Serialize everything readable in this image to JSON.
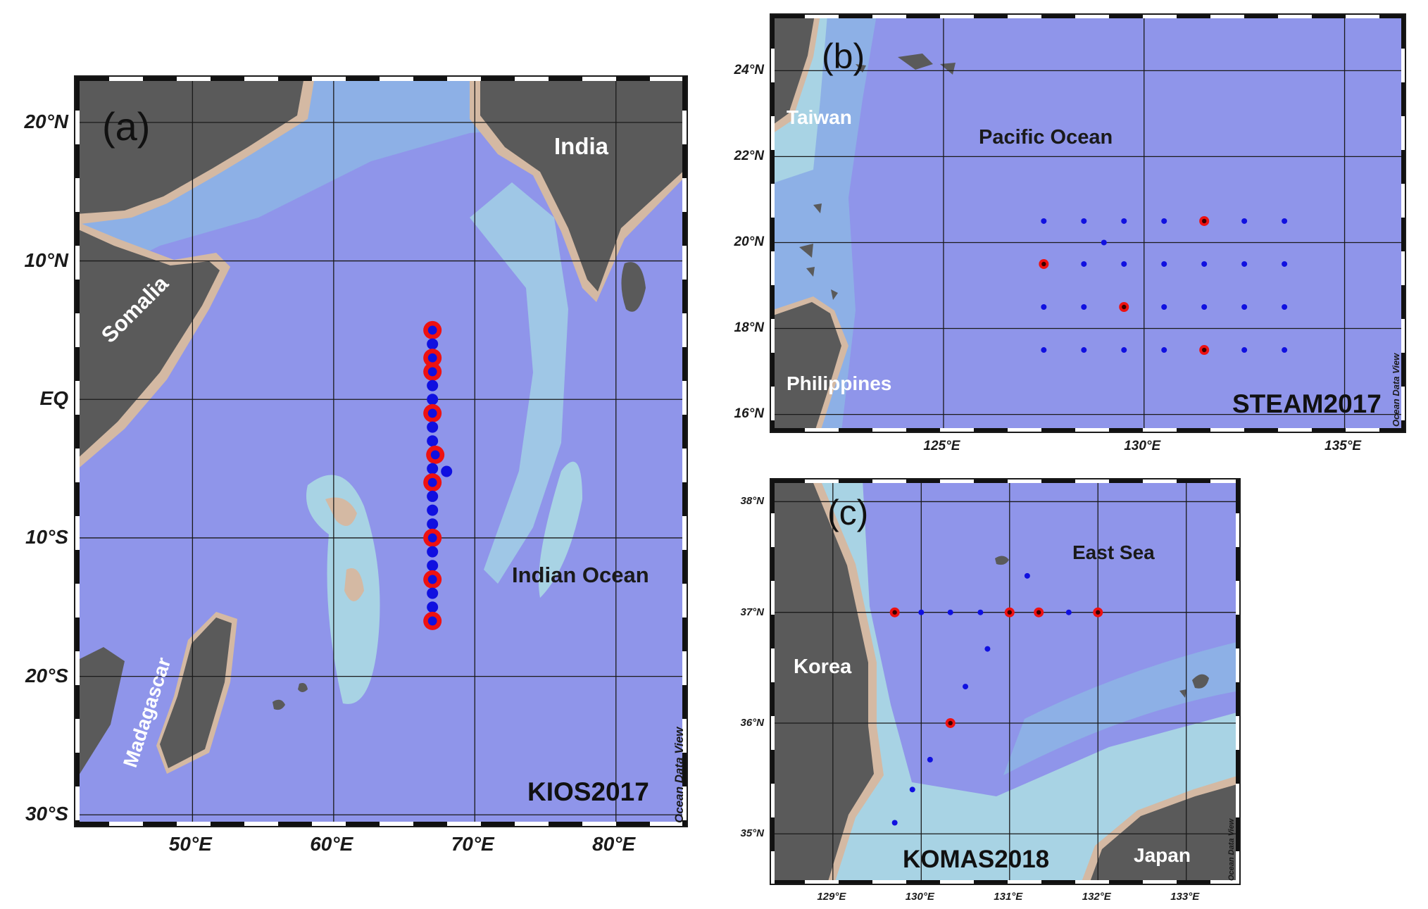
{
  "figure": {
    "credit": "Ocean Data View",
    "colors": {
      "ocean_deep": "#8f95ea",
      "ocean_mid": "#8db0e6",
      "shelf": "#a8d3e4",
      "coast": "#d4b9a3",
      "land": "#5a5a5a",
      "station_small": "#1010e0",
      "station_sampled": "#ee1111"
    }
  },
  "panel_a": {
    "letter": "(a)",
    "cruise": "KIOS2017",
    "ocean_label": "Indian Ocean",
    "places": [
      "India",
      "Somalia",
      "Madagascar"
    ],
    "lat_ticks": [
      "20°N",
      "10°N",
      "EQ",
      "10°S",
      "20°S",
      "30°S"
    ],
    "lon_ticks": [
      "50°E",
      "60°E",
      "70°E",
      "80°E"
    ]
  },
  "panel_b": {
    "letter": "(b)",
    "cruise": "STEAM2017",
    "ocean_label": "Pacific Ocean",
    "places": [
      "Taiwan",
      "Philippines"
    ],
    "lat_ticks": [
      "24°N",
      "22°N",
      "20°N",
      "18°N",
      "16°N"
    ],
    "lon_ticks": [
      "125°E",
      "130°E",
      "135°E"
    ]
  },
  "panel_c": {
    "letter": "(c)",
    "cruise": "KOMAS2018",
    "ocean_label": "East Sea",
    "places": [
      "Korea",
      "Japan"
    ],
    "lat_ticks": [
      "38°N",
      "37°N",
      "36°N",
      "35°N"
    ],
    "lon_ticks": [
      "129°E",
      "130°E",
      "131°E",
      "132°E",
      "133°E"
    ]
  },
  "stations": {
    "kios2017": [
      {
        "lat": 5.0,
        "lon": 67.0,
        "sampled": true
      },
      {
        "lat": 4.0,
        "lon": 67.0,
        "sampled": false
      },
      {
        "lat": 3.0,
        "lon": 67.0,
        "sampled": true
      },
      {
        "lat": 2.0,
        "lon": 67.0,
        "sampled": true
      },
      {
        "lat": 1.0,
        "lon": 67.0,
        "sampled": false
      },
      {
        "lat": 0.0,
        "lon": 67.0,
        "sampled": false
      },
      {
        "lat": -1.0,
        "lon": 67.0,
        "sampled": true
      },
      {
        "lat": -2.0,
        "lon": 67.0,
        "sampled": false
      },
      {
        "lat": -3.0,
        "lon": 67.0,
        "sampled": false
      },
      {
        "lat": -4.0,
        "lon": 67.2,
        "sampled": true
      },
      {
        "lat": -5.0,
        "lon": 67.0,
        "sampled": false
      },
      {
        "lat": -5.2,
        "lon": 68.0,
        "sampled": false
      },
      {
        "lat": -6.0,
        "lon": 67.0,
        "sampled": true
      },
      {
        "lat": -7.0,
        "lon": 67.0,
        "sampled": false
      },
      {
        "lat": -8.0,
        "lon": 67.0,
        "sampled": false
      },
      {
        "lat": -9.0,
        "lon": 67.0,
        "sampled": false
      },
      {
        "lat": -10.0,
        "lon": 67.0,
        "sampled": true
      },
      {
        "lat": -11.0,
        "lon": 67.0,
        "sampled": false
      },
      {
        "lat": -12.0,
        "lon": 67.0,
        "sampled": false
      },
      {
        "lat": -13.0,
        "lon": 67.0,
        "sampled": true
      },
      {
        "lat": -14.0,
        "lon": 67.0,
        "sampled": false
      },
      {
        "lat": -15.0,
        "lon": 67.0,
        "sampled": false
      },
      {
        "lat": -16.0,
        "lon": 67.0,
        "sampled": true
      }
    ],
    "steam2017": [
      {
        "lat": 20.5,
        "lon": 127.5,
        "sampled": false
      },
      {
        "lat": 20.5,
        "lon": 128.5,
        "sampled": false
      },
      {
        "lat": 20.5,
        "lon": 129.5,
        "sampled": false
      },
      {
        "lat": 20.5,
        "lon": 130.5,
        "sampled": false
      },
      {
        "lat": 20.5,
        "lon": 131.5,
        "sampled": true
      },
      {
        "lat": 20.5,
        "lon": 132.5,
        "sampled": false
      },
      {
        "lat": 20.5,
        "lon": 133.5,
        "sampled": false
      },
      {
        "lat": 20.0,
        "lon": 129.0,
        "sampled": false
      },
      {
        "lat": 19.5,
        "lon": 127.5,
        "sampled": true
      },
      {
        "lat": 19.5,
        "lon": 128.5,
        "sampled": false
      },
      {
        "lat": 19.5,
        "lon": 129.5,
        "sampled": false
      },
      {
        "lat": 19.5,
        "lon": 130.5,
        "sampled": false
      },
      {
        "lat": 19.5,
        "lon": 131.5,
        "sampled": false
      },
      {
        "lat": 19.5,
        "lon": 132.5,
        "sampled": false
      },
      {
        "lat": 19.5,
        "lon": 133.5,
        "sampled": false
      },
      {
        "lat": 18.5,
        "lon": 127.5,
        "sampled": false
      },
      {
        "lat": 18.5,
        "lon": 128.5,
        "sampled": false
      },
      {
        "lat": 18.5,
        "lon": 129.5,
        "sampled": true
      },
      {
        "lat": 18.5,
        "lon": 130.5,
        "sampled": false
      },
      {
        "lat": 18.5,
        "lon": 131.5,
        "sampled": false
      },
      {
        "lat": 18.5,
        "lon": 132.5,
        "sampled": false
      },
      {
        "lat": 18.5,
        "lon": 133.5,
        "sampled": false
      },
      {
        "lat": 17.5,
        "lon": 127.5,
        "sampled": false
      },
      {
        "lat": 17.5,
        "lon": 128.5,
        "sampled": false
      },
      {
        "lat": 17.5,
        "lon": 129.5,
        "sampled": false
      },
      {
        "lat": 17.5,
        "lon": 130.5,
        "sampled": false
      },
      {
        "lat": 17.5,
        "lon": 131.5,
        "sampled": true
      },
      {
        "lat": 17.5,
        "lon": 132.5,
        "sampled": false
      },
      {
        "lat": 17.5,
        "lon": 133.5,
        "sampled": false
      }
    ],
    "komas2018": [
      {
        "lat": 37.0,
        "lon": 129.7,
        "sampled": true
      },
      {
        "lat": 37.0,
        "lon": 130.0,
        "sampled": false
      },
      {
        "lat": 37.0,
        "lon": 130.33,
        "sampled": false
      },
      {
        "lat": 37.0,
        "lon": 130.67,
        "sampled": false
      },
      {
        "lat": 37.0,
        "lon": 131.0,
        "sampled": true
      },
      {
        "lat": 37.0,
        "lon": 131.33,
        "sampled": true
      },
      {
        "lat": 37.0,
        "lon": 131.67,
        "sampled": false
      },
      {
        "lat": 37.0,
        "lon": 132.0,
        "sampled": true
      },
      {
        "lat": 37.33,
        "lon": 131.2,
        "sampled": false
      },
      {
        "lat": 36.67,
        "lon": 130.75,
        "sampled": false
      },
      {
        "lat": 36.33,
        "lon": 130.5,
        "sampled": false
      },
      {
        "lat": 36.0,
        "lon": 130.33,
        "sampled": true
      },
      {
        "lat": 35.67,
        "lon": 130.1,
        "sampled": false
      },
      {
        "lat": 35.4,
        "lon": 129.9,
        "sampled": false
      },
      {
        "lat": 35.1,
        "lon": 129.7,
        "sampled": false
      }
    ]
  }
}
